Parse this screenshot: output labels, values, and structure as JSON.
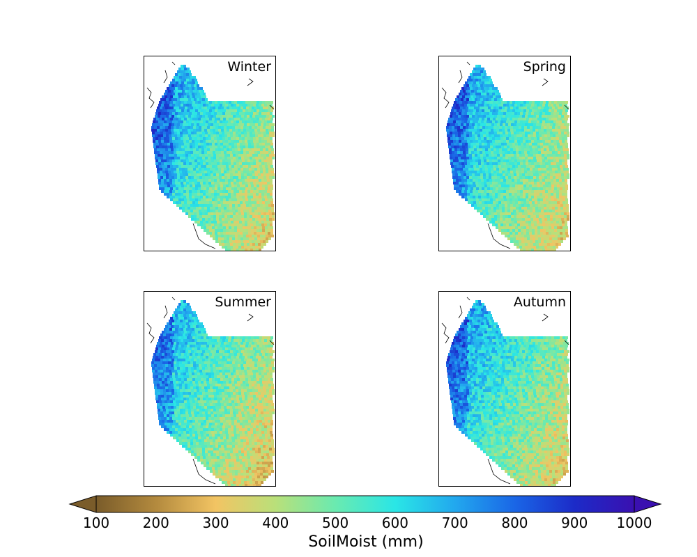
{
  "panels": [
    {
      "title": "Winter"
    },
    {
      "title": "Spring"
    },
    {
      "title": "Summer"
    },
    {
      "title": "Autumn"
    }
  ],
  "colorbar": {
    "label": "SoilMoist (mm)",
    "ticks": [
      "100",
      "200",
      "300",
      "400",
      "500",
      "600",
      "700",
      "800",
      "900",
      "1000"
    ],
    "min": 100,
    "max": 1000,
    "colors": [
      "#7a5c2a",
      "#b38a3e",
      "#f2c463",
      "#b9e07a",
      "#6aeab0",
      "#2ae6e6",
      "#22a8ee",
      "#1a66e6",
      "#1c2bc8",
      "#3a10b0"
    ]
  }
}
